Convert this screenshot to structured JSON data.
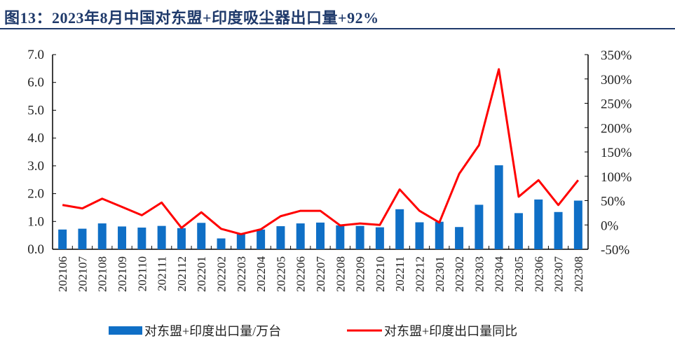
{
  "title": "图13：2023年8月中国对东盟+印度吸尘器出口量+92%",
  "chart_data": {
    "type": "bar+line",
    "categories": [
      "202106",
      "202107",
      "202108",
      "202109",
      "202110",
      "202111",
      "202112",
      "202201",
      "202202",
      "202203",
      "202204",
      "202205",
      "202206",
      "202207",
      "202208",
      "202209",
      "202210",
      "202211",
      "202212",
      "202301",
      "202302",
      "202303",
      "202304",
      "202305",
      "202306",
      "202307",
      "202308"
    ],
    "series": [
      {
        "name": "对东盟+印度出口量/万台",
        "type": "bar",
        "axis": "left",
        "color": "#0F6FC6",
        "values": [
          0.71,
          0.74,
          0.93,
          0.82,
          0.78,
          0.84,
          0.76,
          0.95,
          0.39,
          0.55,
          0.71,
          0.83,
          0.93,
          0.96,
          0.86,
          0.84,
          0.79,
          1.44,
          0.97,
          0.99,
          0.8,
          1.6,
          3.02,
          1.3,
          1.79,
          1.34,
          1.75
        ]
      },
      {
        "name": "对东盟+印度出口量同比",
        "type": "line",
        "axis": "right",
        "color": "#FF0000",
        "values": [
          41,
          34,
          54,
          37,
          20,
          46,
          -6,
          26,
          -8,
          -19,
          -9,
          18,
          29,
          29,
          -1,
          3,
          0,
          73,
          29,
          5,
          105,
          164,
          320,
          58,
          92,
          41,
          92
        ]
      }
    ],
    "left_axis": {
      "range": [
        0,
        7
      ],
      "ticks": [
        "0.0",
        "1.0",
        "2.0",
        "3.0",
        "4.0",
        "5.0",
        "6.0",
        "7.0"
      ]
    },
    "right_axis": {
      "range": [
        -50,
        350
      ],
      "ticks": [
        "-50%",
        "0%",
        "50%",
        "100%",
        "150%",
        "200%",
        "250%",
        "300%",
        "350%"
      ]
    },
    "grid": false,
    "legend": "bottom"
  }
}
